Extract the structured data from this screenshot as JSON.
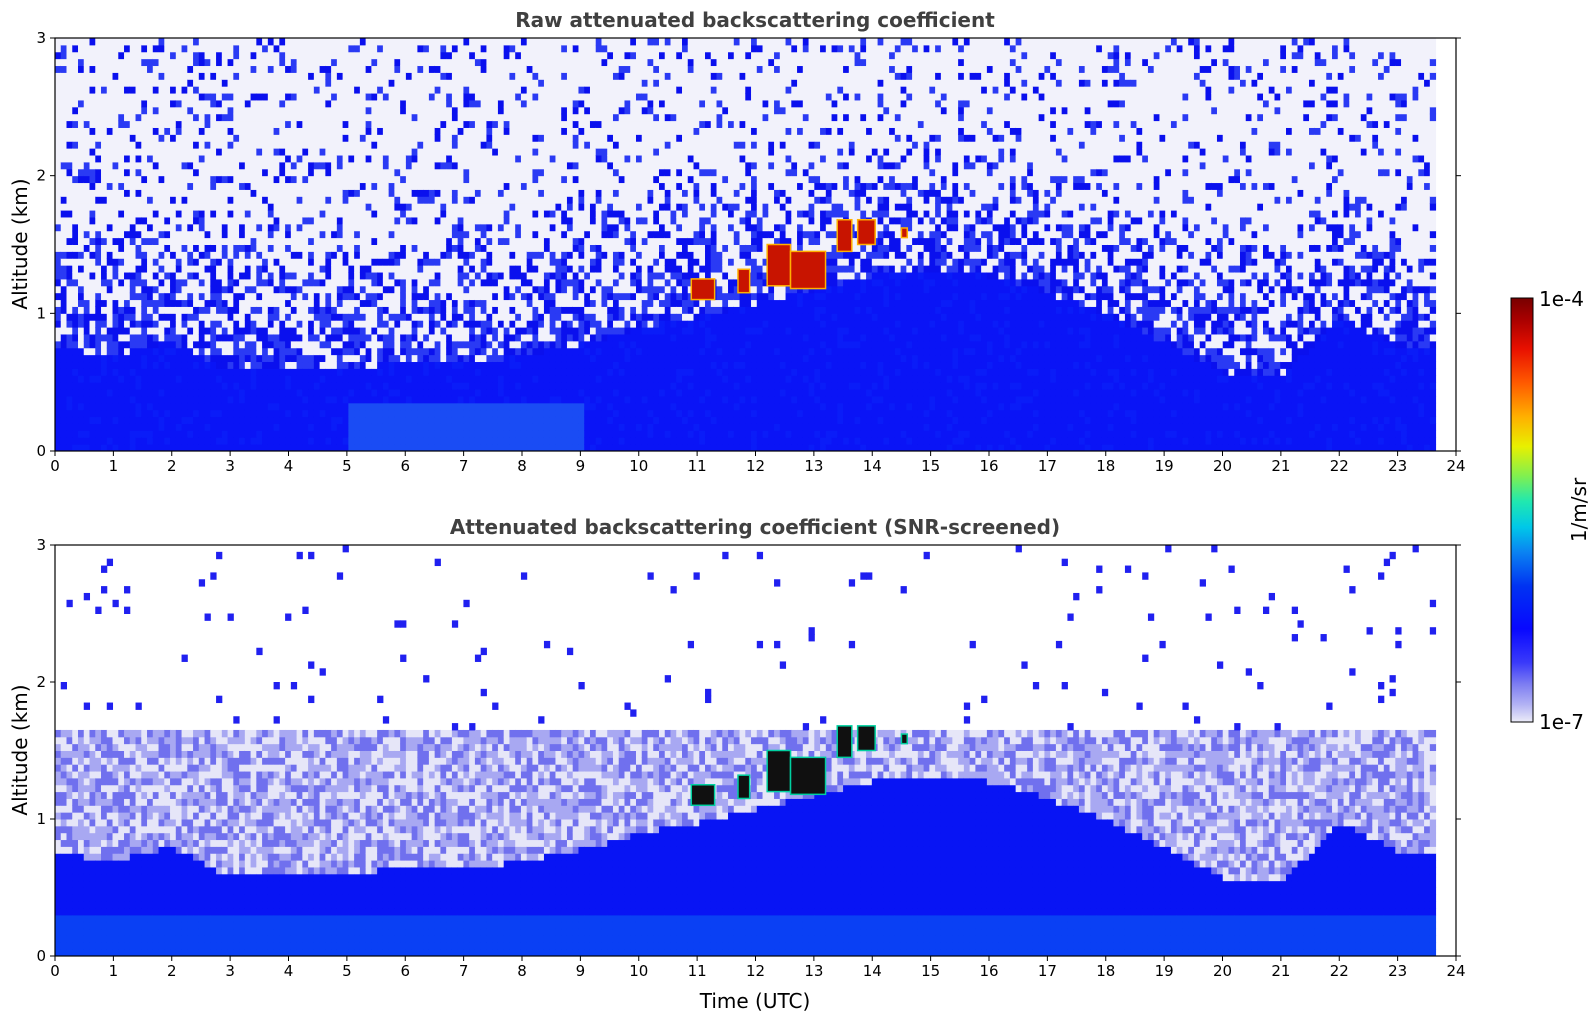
{
  "chart_data": [
    {
      "type": "heatmap",
      "title": "Raw attenuated backscattering coefficient",
      "xlabel": "",
      "ylabel": "Altitude (km)",
      "xlim": [
        0,
        24
      ],
      "ylim": [
        0,
        3
      ],
      "x_ticks": [
        "0",
        "1",
        "2",
        "3",
        "4",
        "5",
        "6",
        "7",
        "8",
        "9",
        "10",
        "11",
        "12",
        "13",
        "14",
        "15",
        "16",
        "17",
        "18",
        "19",
        "20",
        "21",
        "22",
        "23",
        "24"
      ],
      "y_ticks": [
        "0",
        "1",
        "2",
        "3"
      ],
      "data_time_range_utc": [
        0,
        23.65
      ],
      "boundary_layer_top_km": [
        {
          "t": 0,
          "z": 0.78
        },
        {
          "t": 1,
          "z": 0.72
        },
        {
          "t": 2,
          "z": 0.82
        },
        {
          "t": 3,
          "z": 0.6
        },
        {
          "t": 4,
          "z": 0.6
        },
        {
          "t": 5,
          "z": 0.62
        },
        {
          "t": 6,
          "z": 0.68
        },
        {
          "t": 7,
          "z": 0.66
        },
        {
          "t": 8,
          "z": 0.72
        },
        {
          "t": 9,
          "z": 0.8
        },
        {
          "t": 10,
          "z": 0.92
        },
        {
          "t": 11,
          "z": 1.0
        },
        {
          "t": 12,
          "z": 1.1
        },
        {
          "t": 13,
          "z": 1.2
        },
        {
          "t": 14,
          "z": 1.3
        },
        {
          "t": 15,
          "z": 1.35
        },
        {
          "t": 16,
          "z": 1.3
        },
        {
          "t": 17,
          "z": 1.18
        },
        {
          "t": 18,
          "z": 1.02
        },
        {
          "t": 19,
          "z": 0.82
        },
        {
          "t": 20,
          "z": 0.6
        },
        {
          "t": 21,
          "z": 0.55
        },
        {
          "t": 22,
          "z": 1.0
        },
        {
          "t": 23,
          "z": 0.8
        },
        {
          "t": 23.65,
          "z": 0.78
        }
      ],
      "cloud_patches": [
        {
          "t0": 10.9,
          "t1": 11.3,
          "z0": 1.1,
          "z1": 1.25
        },
        {
          "t0": 11.7,
          "t1": 11.9,
          "z0": 1.15,
          "z1": 1.32
        },
        {
          "t0": 12.2,
          "t1": 12.6,
          "z0": 1.2,
          "z1": 1.5
        },
        {
          "t0": 12.6,
          "t1": 13.2,
          "z0": 1.18,
          "z1": 1.45
        },
        {
          "t0": 13.4,
          "t1": 13.65,
          "z0": 1.45,
          "z1": 1.68
        },
        {
          "t0": 13.75,
          "t1": 14.05,
          "z0": 1.5,
          "z1": 1.68
        },
        {
          "t0": 14.5,
          "t1": 14.6,
          "z0": 1.55,
          "z1": 1.62
        }
      ]
    },
    {
      "type": "heatmap",
      "title": "Attenuated backscattering coefficient (SNR-screened)",
      "xlabel": "Time (UTC)",
      "ylabel": "Altitude (km)",
      "xlim": [
        0,
        24
      ],
      "ylim": [
        0,
        3
      ],
      "x_ticks": [
        "0",
        "1",
        "2",
        "3",
        "4",
        "5",
        "6",
        "7",
        "8",
        "9",
        "10",
        "11",
        "12",
        "13",
        "14",
        "15",
        "16",
        "17",
        "18",
        "19",
        "20",
        "21",
        "22",
        "23",
        "24"
      ],
      "y_ticks": [
        "0",
        "1",
        "2",
        "3"
      ],
      "data_time_range_utc": [
        0,
        23.65
      ],
      "screened_top_km": 1.65,
      "cloud_patches": [
        {
          "t0": 10.9,
          "t1": 11.3,
          "z0": 1.1,
          "z1": 1.25
        },
        {
          "t0": 11.7,
          "t1": 11.9,
          "z0": 1.15,
          "z1": 1.32
        },
        {
          "t0": 12.2,
          "t1": 12.6,
          "z0": 1.2,
          "z1": 1.5
        },
        {
          "t0": 12.6,
          "t1": 13.2,
          "z0": 1.18,
          "z1": 1.45
        },
        {
          "t0": 13.4,
          "t1": 13.65,
          "z0": 1.45,
          "z1": 1.68
        },
        {
          "t0": 13.75,
          "t1": 14.05,
          "z0": 1.5,
          "z1": 1.68
        },
        {
          "t0": 14.5,
          "t1": 14.6,
          "z0": 1.55,
          "z1": 1.62
        }
      ]
    }
  ],
  "colorbar": {
    "label": "1/m/sr",
    "max_label": "1e-4",
    "min_label": "1e-7",
    "scale": "log",
    "range": [
      1e-07,
      0.0001
    ],
    "colors": [
      "#e8e8f8",
      "#b4b4f4",
      "#8080f0",
      "#4a4af6",
      "#1010ff",
      "#0000f0",
      "#0a3cf0",
      "#0a78f4",
      "#00b4f0",
      "#00e0d0",
      "#40f080",
      "#a0f040",
      "#f0f000",
      "#ffb000",
      "#ff6000",
      "#f01000",
      "#b00000",
      "#800000"
    ]
  }
}
